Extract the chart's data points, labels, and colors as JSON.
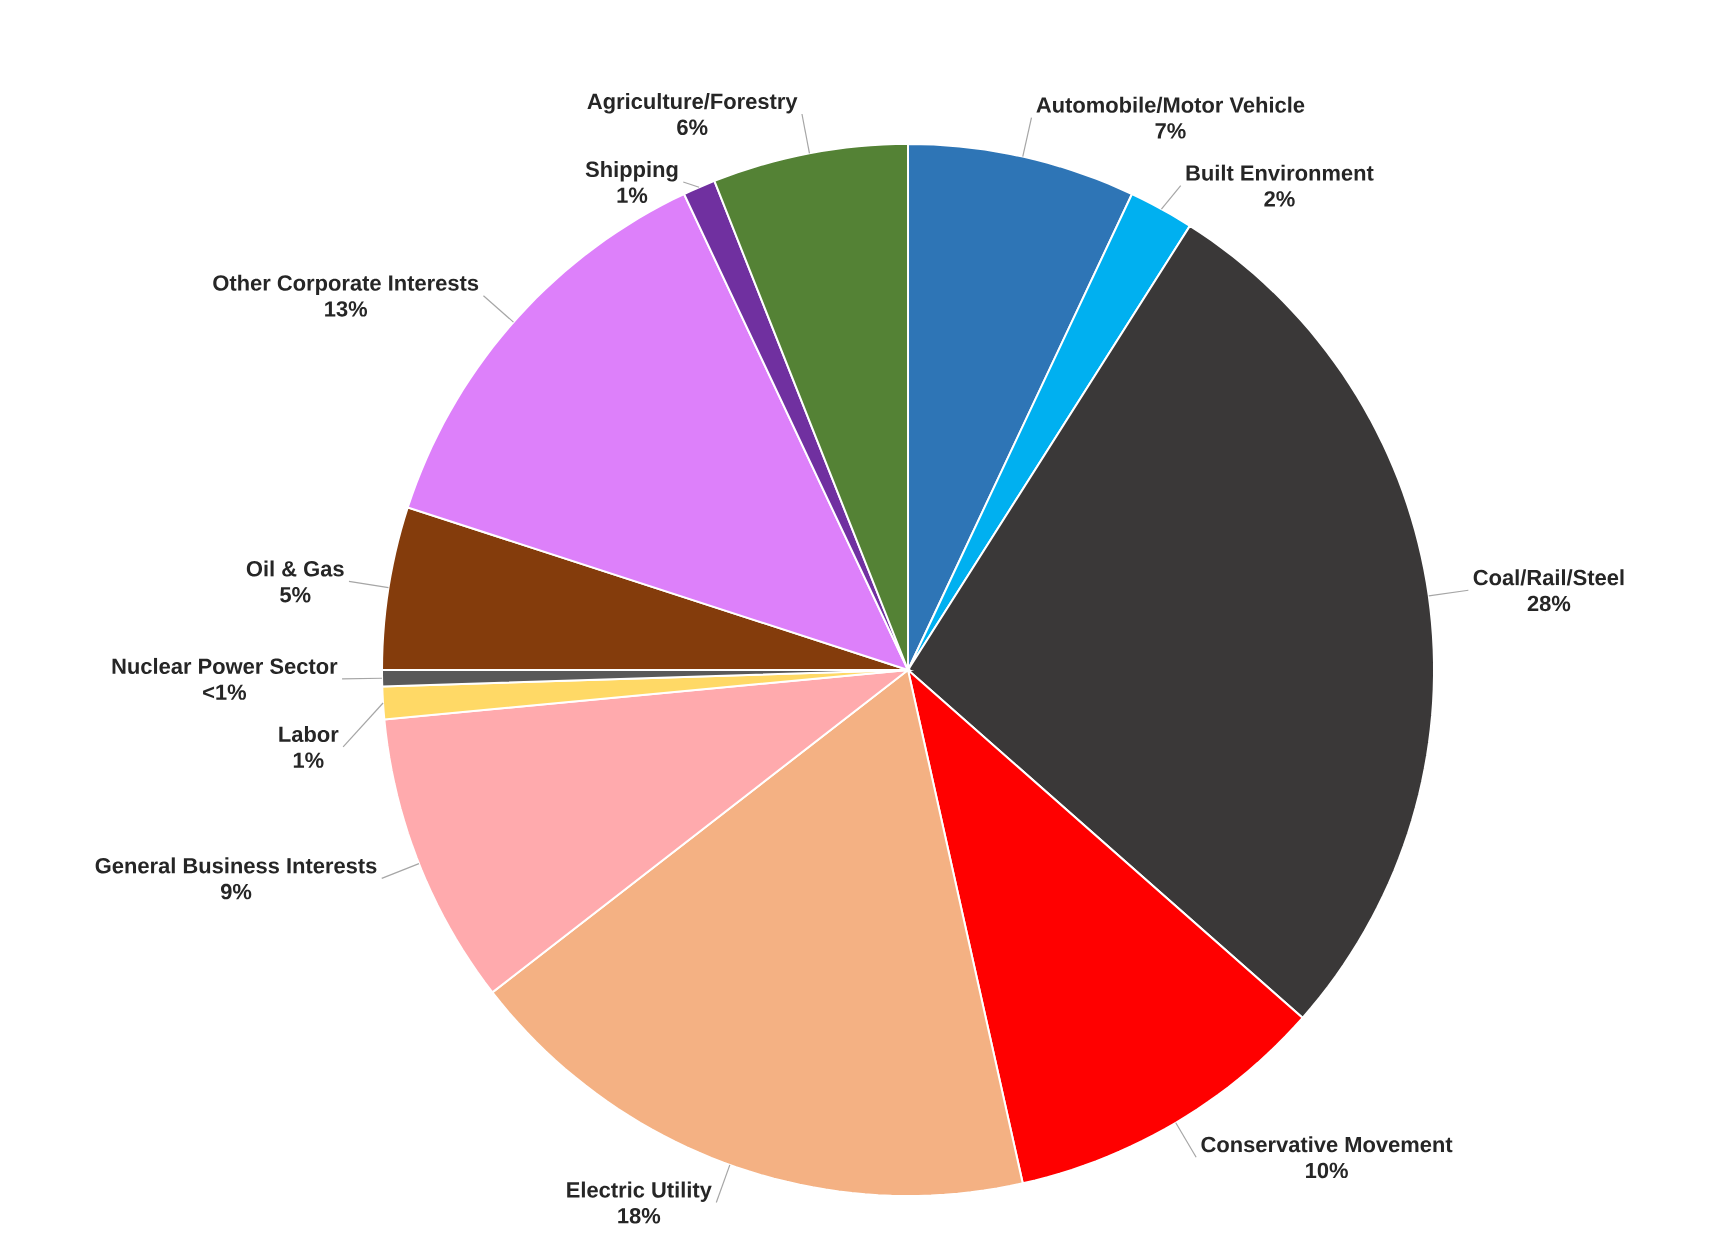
{
  "chart_data": {
    "type": "pie",
    "categories": [
      "Automobile/Motor Vehicle",
      "Built Environment",
      "Coal/Rail/Steel",
      "Conservative Movement",
      "Electric Utility",
      "General Business Interests",
      "Labor",
      "Nuclear Power Sector",
      "Oil & Gas",
      "Other Corporate Interests",
      "Shipping",
      "Agriculture/Forestry"
    ],
    "values": [
      7,
      2,
      27.5,
      10,
      18,
      9,
      1,
      0.5,
      5,
      13,
      1,
      6
    ],
    "value_labels": [
      "7%",
      "2%",
      "28%",
      "10%",
      "18%",
      "9%",
      "1%",
      "<1%",
      "5%",
      "13%",
      "1%",
      "6%"
    ],
    "colors": [
      "#2e75b6",
      "#00b0f0",
      "#3a3838",
      "#ff0000",
      "#f4b183",
      "#ffaaad",
      "#ffd966",
      "#595959",
      "#843c0c",
      "#dd80fa",
      "#7030a0",
      "#548235"
    ]
  }
}
